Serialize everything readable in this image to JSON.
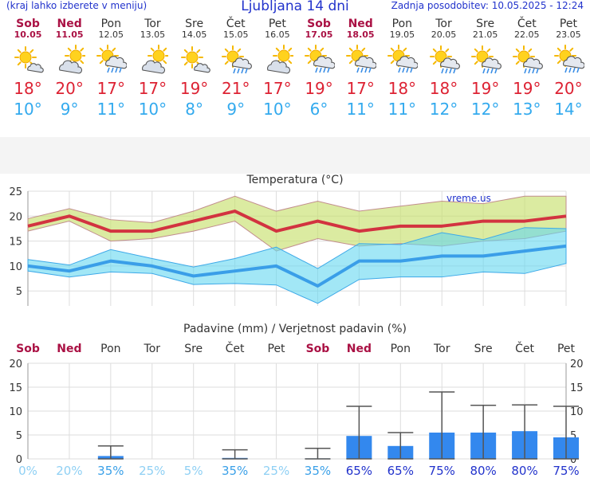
{
  "header": {
    "menu_hint": "(kraj lahko izberete v meniju)",
    "title": "Ljubljana 14 dni",
    "updated": "Zadnja posodobitev: 10.05.2025 - 12:24"
  },
  "days": [
    {
      "name": "Sob",
      "date": "10.05",
      "weekend": true,
      "icon": "sun-cloud-icon",
      "tmax": "18°",
      "tmin": "10°"
    },
    {
      "name": "Ned",
      "date": "11.05",
      "weekend": true,
      "icon": "partly-cloudy-icon",
      "tmax": "20°",
      "tmin": "9°"
    },
    {
      "name": "Pon",
      "date": "12.05",
      "weekend": false,
      "icon": "cloud-rain-icon",
      "tmax": "17°",
      "tmin": "11°"
    },
    {
      "name": "Tor",
      "date": "13.05",
      "weekend": false,
      "icon": "partly-cloudy-icon",
      "tmax": "17°",
      "tmin": "10°"
    },
    {
      "name": "Sre",
      "date": "14.05",
      "weekend": false,
      "icon": "sun-cloud-icon",
      "tmax": "19°",
      "tmin": "8°"
    },
    {
      "name": "Čet",
      "date": "15.05",
      "weekend": false,
      "icon": "sun-cloud-rain-icon",
      "tmax": "21°",
      "tmin": "9°"
    },
    {
      "name": "Pet",
      "date": "16.05",
      "weekend": false,
      "icon": "partly-cloudy-icon",
      "tmax": "17°",
      "tmin": "10°"
    },
    {
      "name": "Sob",
      "date": "17.05",
      "weekend": true,
      "icon": "cloud-rain-icon",
      "tmax": "19°",
      "tmin": "6°"
    },
    {
      "name": "Ned",
      "date": "18.05",
      "weekend": true,
      "icon": "cloud-rain-icon",
      "tmax": "17°",
      "tmin": "11°"
    },
    {
      "name": "Pon",
      "date": "19.05",
      "weekend": false,
      "icon": "cloud-rain-icon",
      "tmax": "18°",
      "tmin": "11°"
    },
    {
      "name": "Tor",
      "date": "20.05",
      "weekend": false,
      "icon": "sun-cloud-rain-icon",
      "tmax": "18°",
      "tmin": "12°"
    },
    {
      "name": "Sre",
      "date": "21.05",
      "weekend": false,
      "icon": "sun-cloud-rain-icon",
      "tmax": "19°",
      "tmin": "12°"
    },
    {
      "name": "Čet",
      "date": "22.05",
      "weekend": false,
      "icon": "sun-cloud-rain-icon",
      "tmax": "19°",
      "tmin": "13°"
    },
    {
      "name": "Pet",
      "date": "23.05",
      "weekend": false,
      "icon": "cloud-rain-icon",
      "tmax": "20°",
      "tmin": "14°"
    }
  ],
  "colors": {
    "weekend": "#aa1144",
    "tmax": "#dd2233",
    "tmin": "#33aaee",
    "precip_bar": "#3388ee"
  },
  "chart_data": [
    {
      "type": "line",
      "title": "Temperatura (°C)",
      "watermark": "vreme.us",
      "categories": [
        "Sob",
        "Ned",
        "Pon",
        "Tor",
        "Sre",
        "Čet",
        "Pet",
        "Sob",
        "Ned",
        "Pon",
        "Tor",
        "Sre",
        "Čet",
        "Pet"
      ],
      "ylim": [
        2,
        25
      ],
      "yticks": [
        5,
        10,
        15,
        20,
        25
      ],
      "grid": true,
      "series": [
        {
          "values": [
            18,
            20,
            17,
            17,
            19,
            21,
            17,
            19,
            17,
            18,
            18,
            19,
            19,
            20
          ]
        },
        {
          "values": [
            19.5,
            21.5,
            19.3,
            18.7,
            21,
            24,
            21,
            23,
            21,
            22,
            23,
            22.5,
            24,
            24
          ]
        },
        {
          "values": [
            17,
            19,
            15,
            15.5,
            17,
            19,
            13,
            15.5,
            14,
            14.5,
            14,
            15,
            15.5,
            17
          ]
        },
        {
          "values": [
            10,
            9,
            11,
            10,
            8,
            9,
            10,
            6,
            11,
            11,
            12,
            12,
            13,
            14
          ]
        },
        {
          "values": [
            11.3,
            10.2,
            13.3,
            11.5,
            9.8,
            11.5,
            13.8,
            9.5,
            14.5,
            14.3,
            16.7,
            15.3,
            17.7,
            17.5
          ]
        },
        {
          "values": [
            9,
            7.8,
            8.8,
            8.5,
            6.3,
            6.5,
            6.2,
            2.5,
            7.3,
            7.8,
            7.8,
            8.8,
            8.5,
            10.5
          ]
        }
      ]
    },
    {
      "type": "bar",
      "title": "Padavine (mm) / Verjetnost padavin (%)",
      "categories": [
        "Sob",
        "Ned",
        "Pon",
        "Tor",
        "Sre",
        "Čet",
        "Pet",
        "Sob",
        "Ned",
        "Pon",
        "Tor",
        "Sre",
        "Čet",
        "Pet"
      ],
      "ylim": [
        0,
        20
      ],
      "yticks": [
        0,
        5,
        10,
        15,
        20
      ],
      "grid": true,
      "series": [
        {
          "values": [
            0,
            0,
            0.6,
            0,
            0,
            0.2,
            0,
            0.1,
            4.8,
            2.7,
            5.5,
            5.5,
            5.8,
            4.5
          ]
        }
      ],
      "error_max": [
        null,
        null,
        2.7,
        null,
        null,
        1.9,
        null,
        2.2,
        11,
        5.5,
        14,
        11.2,
        11.3,
        11
      ],
      "probability": [
        "0%",
        "20%",
        "35%",
        "25%",
        "5%",
        "35%",
        "25%",
        "35%",
        "65%",
        "65%",
        "75%",
        "80%",
        "80%",
        "75%"
      ]
    }
  ]
}
